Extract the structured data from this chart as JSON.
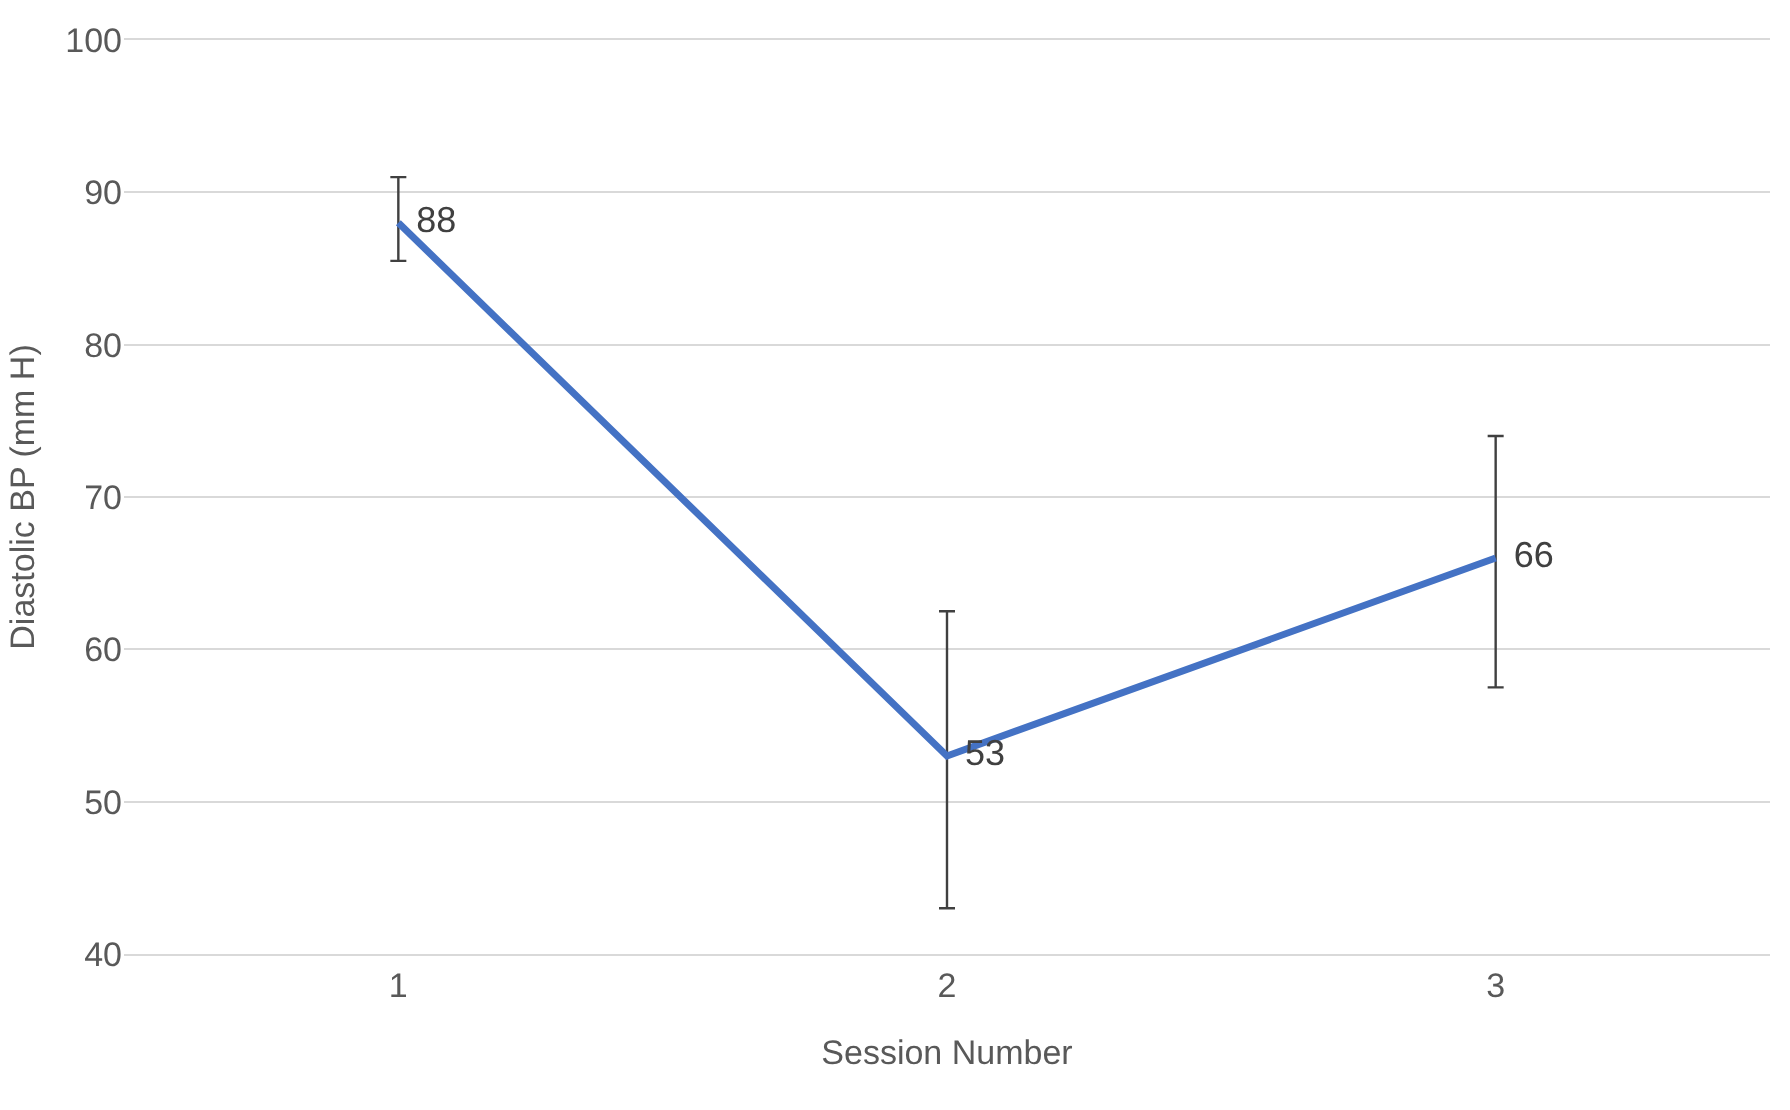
{
  "chart_data": {
    "type": "line",
    "xlabel": "Session Number",
    "ylabel": "Diastolic BP (mm H)",
    "categories": [
      "1",
      "2",
      "3"
    ],
    "series": [
      {
        "color": "#4472c4",
        "values": [
          88,
          53,
          66
        ],
        "errors": [
          [
            85.5,
            91
          ],
          [
            43,
            62.5
          ],
          [
            57.5,
            74
          ]
        ]
      }
    ],
    "ylim": [
      40,
      100
    ],
    "yticks": [
      40,
      50,
      60,
      70,
      80,
      90,
      100
    ],
    "grid": "y",
    "data_labels": true,
    "marker": "none",
    "line_style": "solid"
  }
}
